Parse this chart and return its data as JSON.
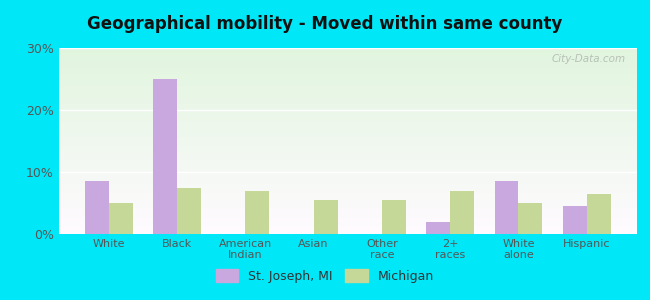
{
  "title": "Geographical mobility - Moved within same county",
  "categories": [
    "White",
    "Black",
    "American\nIndian",
    "Asian",
    "Other\nrace",
    "2+\nraces",
    "White\nalone",
    "Hispanic"
  ],
  "st_joseph_values": [
    8.5,
    25.0,
    0,
    0,
    0,
    2.0,
    8.5,
    4.5
  ],
  "michigan_values": [
    5.0,
    7.5,
    7.0,
    5.5,
    5.5,
    7.0,
    5.0,
    6.5
  ],
  "st_joseph_color": "#c9a8e0",
  "michigan_color": "#c5d898",
  "background_outer": "#00e8f8",
  "ylim": [
    0,
    30
  ],
  "yticks": [
    0,
    10,
    20,
    30
  ],
  "ytick_labels": [
    "0%",
    "10%",
    "20%",
    "30%"
  ],
  "bar_width": 0.35,
  "legend_label_1": "St. Joseph, MI",
  "legend_label_2": "Michigan",
  "watermark": "City-Data.com"
}
